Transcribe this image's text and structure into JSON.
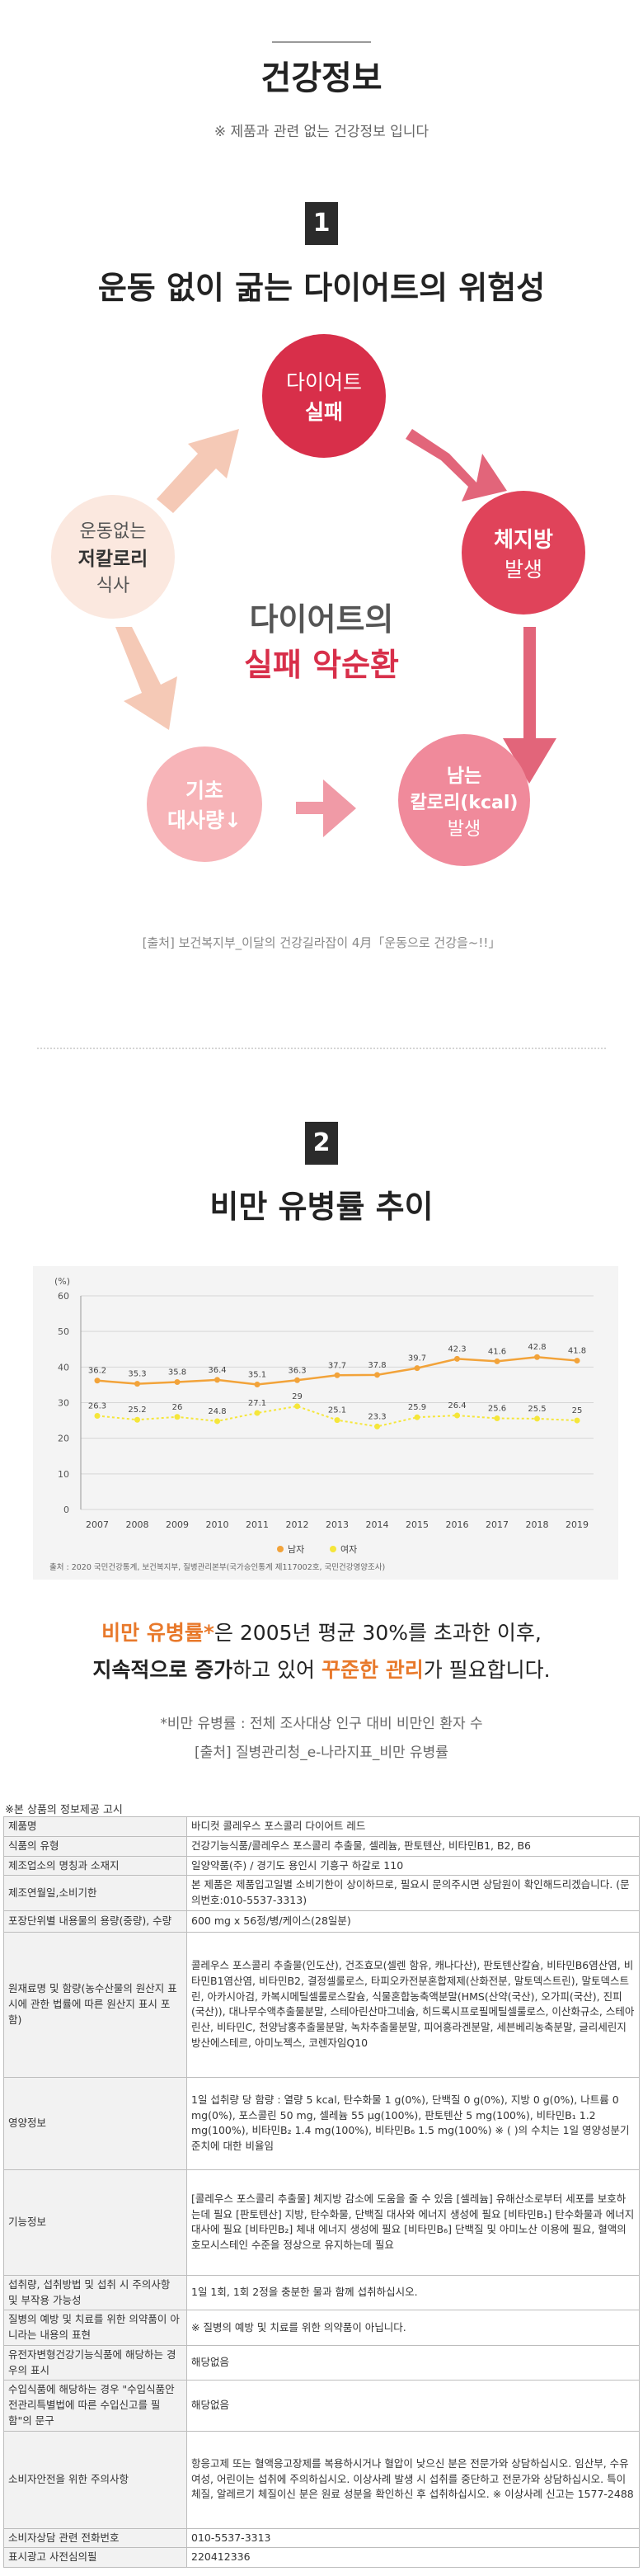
{
  "header": {
    "title": "건강정보",
    "subtitle": "※ 제품과 관련 없는 건강정보 입니다"
  },
  "section1": {
    "number": "1",
    "title": "운동 없이 굶는 다이어트의 위험성",
    "cycle": {
      "top": [
        "다이어트",
        "실패"
      ],
      "right": [
        "체지방",
        "발생"
      ],
      "bottom_right": [
        "남는",
        "칼로리(kcal)",
        "발생"
      ],
      "bottom_left": [
        "기초",
        "대사량↓"
      ],
      "left": [
        "운동없는",
        "저칼로리",
        "식사"
      ],
      "center": [
        "다이어트의",
        "실패 악순환"
      ]
    },
    "source": "[출처] 보건복지부_이달의 건강길라잡이 4月「운동으로 건강을~!!」"
  },
  "section2": {
    "number": "2",
    "title": "비만 유병률 추이",
    "desc_line1_highlight": "비만 유병률*",
    "desc_line1_rest": "은 2005년 평균 30%를 초과한 이후,",
    "desc_line2_a": "지속적으로 증가",
    "desc_line2_b": "하고 있어 ",
    "desc_line2_c": "꾸준한 관리",
    "desc_line2_d": "가 필요합니다.",
    "note1": "*비만 유병률 : 전체 조사대상 인구 대비 비만인 환자 수",
    "note2": "[출처] 질병관리청_e-나라지표_비만 유병률"
  },
  "chart_data": {
    "type": "line",
    "ylabel": "(%)",
    "ylim": [
      0,
      60
    ],
    "yticks": [
      0,
      10,
      20,
      30,
      40,
      50,
      60
    ],
    "x": [
      "2007",
      "2008",
      "2009",
      "2010",
      "2011",
      "2012",
      "2013",
      "2014",
      "2015",
      "2016",
      "2017",
      "2018",
      "2019"
    ],
    "series": [
      {
        "name": "남자",
        "color": "#f2a33a",
        "values": [
          36.2,
          35.3,
          35.8,
          36.4,
          35.1,
          36.3,
          37.7,
          37.8,
          39.7,
          42.3,
          41.6,
          42.8,
          41.8
        ]
      },
      {
        "name": "여자",
        "color": "#f5e63a",
        "values": [
          26.3,
          25.2,
          26,
          24.8,
          27.1,
          29,
          25.1,
          23.3,
          25.9,
          26.4,
          25.6,
          25.5,
          25
        ]
      }
    ],
    "grid": true,
    "legend": "bottom",
    "source": "출처 : 2020 국민건강통계, 보건복지부, 질병관리본부(국가승인통계 제117002호, 국민건강영양조사)"
  },
  "info_table": {
    "heading": "※본 상품의 정보제공 고시",
    "rows": [
      {
        "k": "제품명",
        "v": "바디컷 콜레우스 포스콜리 다이어트 레드"
      },
      {
        "k": "식품의 유형",
        "v": "건강기능식품/콜레우스 포스콜리 추출물, 셀레늄, 판토텐산, 비타민B1, B2, B6"
      },
      {
        "k": "제조업소의 명칭과 소재지",
        "v": "일양약품(주) / 경기도 용인시 기흥구 하갈로 110"
      },
      {
        "k": "제조연월일,소비기한",
        "v": "본 제품은 제품입고일별 소비기한이 상이하므로, 필요시 문의주시면 상담원이 확인해드리겠습니다. (문의번호:010-5537-3313)"
      },
      {
        "k": "포장단위별 내용물의 용량(중량), 수량",
        "v": "600 mg x 56정/병/케이스(28일분)"
      },
      {
        "k": "원재료명 및 함량(농수산물의 원산지 표시에 관한 법률에 따른 원산지 표시 포함)",
        "v": "콜레우스 포스콜리 추출물(인도산), 건조효모(셀렌 함유, 캐나다산), 판토텐산칼슘, 비타민B6염산염, 비타민B1염산염, 비타민B2, 결정셀룰로스, 타피오카전분혼합제제(산화전분, 말토덱스트린), 말토덱스트린, 아카시아검, 카복시메틸셀룰로스칼슘, 식물혼합농축액분말(HMS(산약(국산), 오가피(국산), 진피(국산)), 대나무수액추출물분말, 스테아린산마그네슘, 히드록시프로필메틸셀룰로스, 이산화규소, 스테아린산, 비타민C, 천양남홍추출물분말, 녹차추출물분말, 피어흥라겐분말, 세븐베리농축분말, 글리세린지방산에스테르, 아미노젝스, 코렌자임Q10"
      },
      {
        "k": "영양정보",
        "v": "1일 섭취량 당 함량 : 열량 5 kcal, 탄수화물 1 g(0%), 단백질 0 g(0%), 지방 0 g(0%), 나트륨 0 mg(0%), 포스콜린 50 mg, 셀레늄 55 μg(100%), 판토텐산 5 mg(100%), 비타민B₁ 1.2 mg(100%), 비타민B₂ 1.4 mg(100%), 비타민B₆ 1.5 mg(100%) ※ ( )의 수치는 1일 영양성분기준치에 대한 비율임"
      },
      {
        "k": "기능정보",
        "v": "[콜레우스 포스콜리 추출물] 체지방 감소에 도움을 줄 수 있음 [셀레늄] 유해산소로부터 세포를 보호하는데 필요 [판토텐산] 지방, 탄수화물, 단백질 대사와 에너지 생성에 필요 [비타민B₁] 탄수화물과 에너지 대사에 필요 [비타민B₂] 체내 에너지 생성에 필요 [비타민B₆] 단백질 및 아미노산 이용에 필요, 혈액의 호모시스테인 수준을 정상으로 유지하는데 필요"
      },
      {
        "k": "섭취량, 섭취방법 및 섭취 시 주의사항 및 부작용 가능성",
        "v": "1일 1회, 1회 2정을 충분한 물과 함께 섭취하십시오."
      },
      {
        "k": "질병의 예방 및 치료를 위한 의약품이 아니라는 내용의 표현",
        "v": "※ 질병의 예방 및 치료를 위한 의약품이 아닙니다."
      },
      {
        "k": "유전자변형건강기능식품에 해당하는 경우의 표시",
        "v": "해당없음"
      },
      {
        "k": "수입식품에 해당하는 경우 \"수입식품안전관리특별법에 따른 수입신고를 필함\"의 문구",
        "v": "해당없음"
      },
      {
        "k": "소비자안전을 위한 주의사항",
        "v": "항응고제 또는 혈액응고장제를 복용하시거나 혈압이 낮으신 분은 전문가와 상담하십시오. 임산부, 수유여성, 어린이는 섭취에 주의하십시오. 이상사례 발생 시 섭취를 중단하고 전문가와 상담하십시오. 특이체질, 알레르기 체질이신 분은 원료 성분을 확인하신 후 섭취하십시오. ※ 이상사례 신고는 1577-2488"
      },
      {
        "k": "소비자상담 관련 전화번호",
        "v": "010-5537-3313"
      },
      {
        "k": "표시광고 사전심의필",
        "v": "220412336"
      }
    ]
  }
}
